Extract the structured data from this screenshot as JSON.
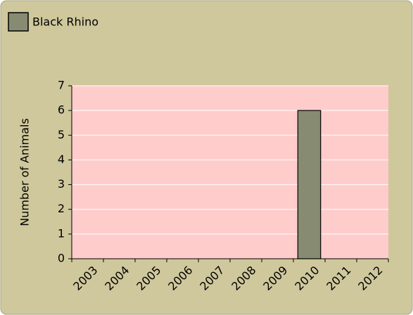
{
  "chart_data": {
    "type": "bar",
    "y_label": "Number of Animals",
    "categories": [
      "2003",
      "2004",
      "2005",
      "2006",
      "2007",
      "2008",
      "2009",
      "2010",
      "2011",
      "2012"
    ],
    "series": [
      {
        "name": "Black Rhino",
        "color": "#878b71",
        "values": [
          0,
          0,
          0,
          0,
          0,
          0,
          0,
          6,
          0,
          0
        ]
      }
    ],
    "ylim": [
      0,
      7
    ],
    "yticks": [
      0,
      1,
      2,
      3,
      4,
      5,
      6,
      7
    ],
    "grid": true,
    "legend": "top-left"
  }
}
